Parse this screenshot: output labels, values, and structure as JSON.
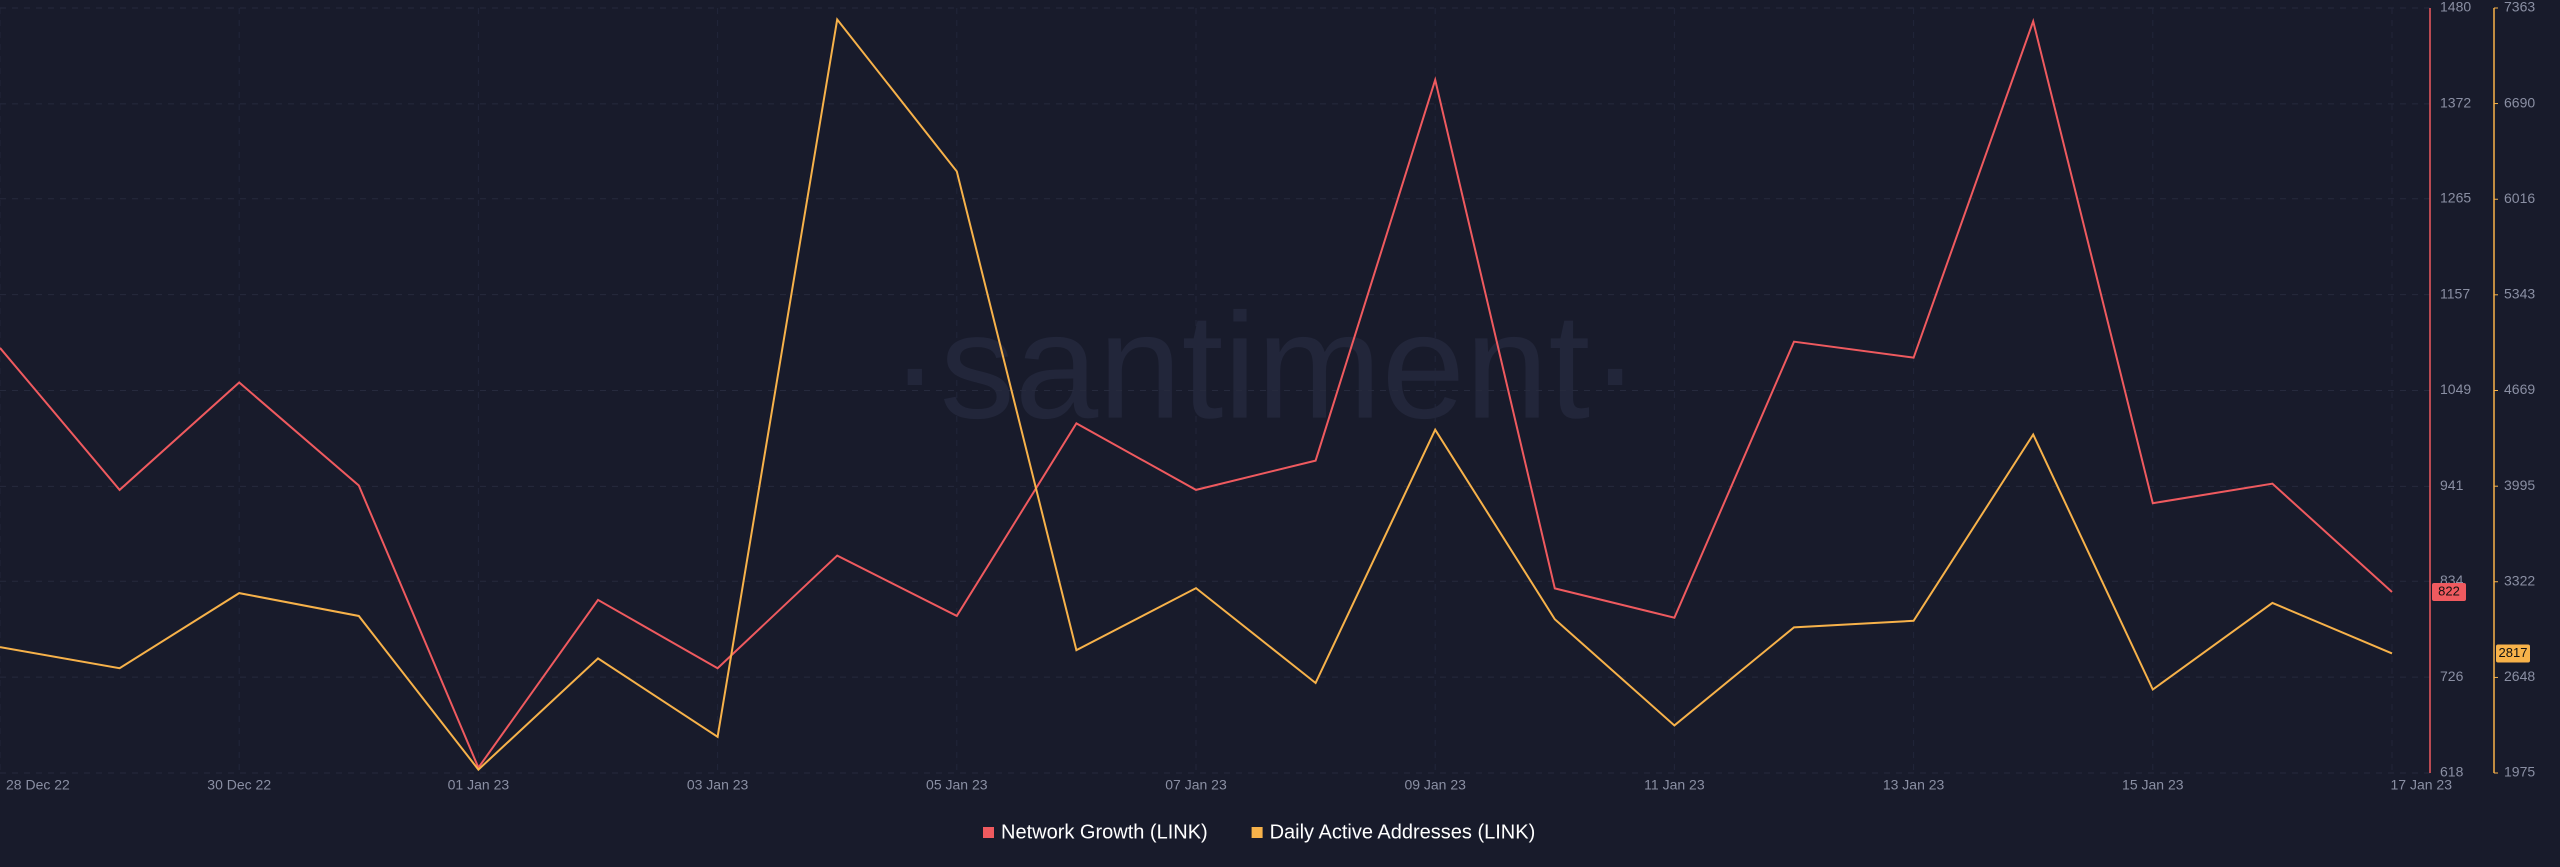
{
  "chart_data": {
    "type": "line",
    "watermark": "·santiment·",
    "categories": [
      "28 Dec 22",
      null,
      "30 Dec 22",
      null,
      "01 Jan 23",
      null,
      "03 Jan 23",
      null,
      "05 Jan 23",
      null,
      "07 Jan 23",
      null,
      "09 Jan 23",
      null,
      "11 Jan 23",
      null,
      "13 Jan 23",
      null,
      "15 Jan 23",
      null,
      "17 Jan 23"
    ],
    "series": [
      {
        "name": "Network Growth (LINK)",
        "color": "#ef5a5f",
        "values": [
          1097,
          937,
          1058,
          942,
          624,
          813,
          736,
          863,
          795,
          1012,
          937,
          970,
          1399,
          826,
          793,
          1104,
          1086,
          1465,
          922,
          944,
          822
        ]
      },
      {
        "name": "Daily Active Addresses (LINK)",
        "color": "#f7b24a",
        "axis": "y2",
        "values": [
          2862,
          2713,
          3242,
          3081,
          1999,
          2782,
          2230,
          7282,
          6212,
          2840,
          3277,
          2609,
          4393,
          3058,
          2310,
          3001,
          3047,
          4359,
          2563,
          3173,
          2817
        ]
      }
    ],
    "ylim": [
      618,
      1480
    ],
    "yticks": [
      618,
      726,
      834,
      941,
      1049,
      1157,
      1265,
      1372,
      1480
    ],
    "y2lim": [
      1975,
      7363
    ],
    "y2ticks": [
      1975,
      2648,
      3322,
      3995,
      4669,
      5343,
      6016,
      6690,
      7363
    ],
    "grid": true,
    "legend": "bottom"
  }
}
